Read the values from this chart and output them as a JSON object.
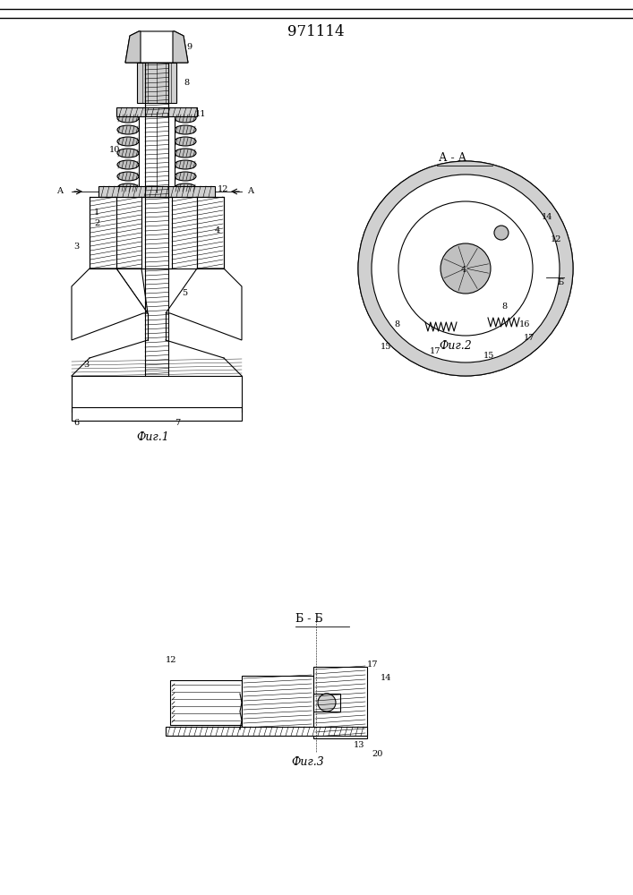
{
  "title": "971114",
  "title_fontsize": 12,
  "background_color": "#ffffff",
  "line_color": "#000000",
  "hatch_color": "#000000",
  "fig1_label": "Фиг.1",
  "fig2_label": "Фиг.2",
  "fig3_label": "Фиг.3",
  "section_aa_label": "А - А",
  "section_bb_label": "Б - Б"
}
